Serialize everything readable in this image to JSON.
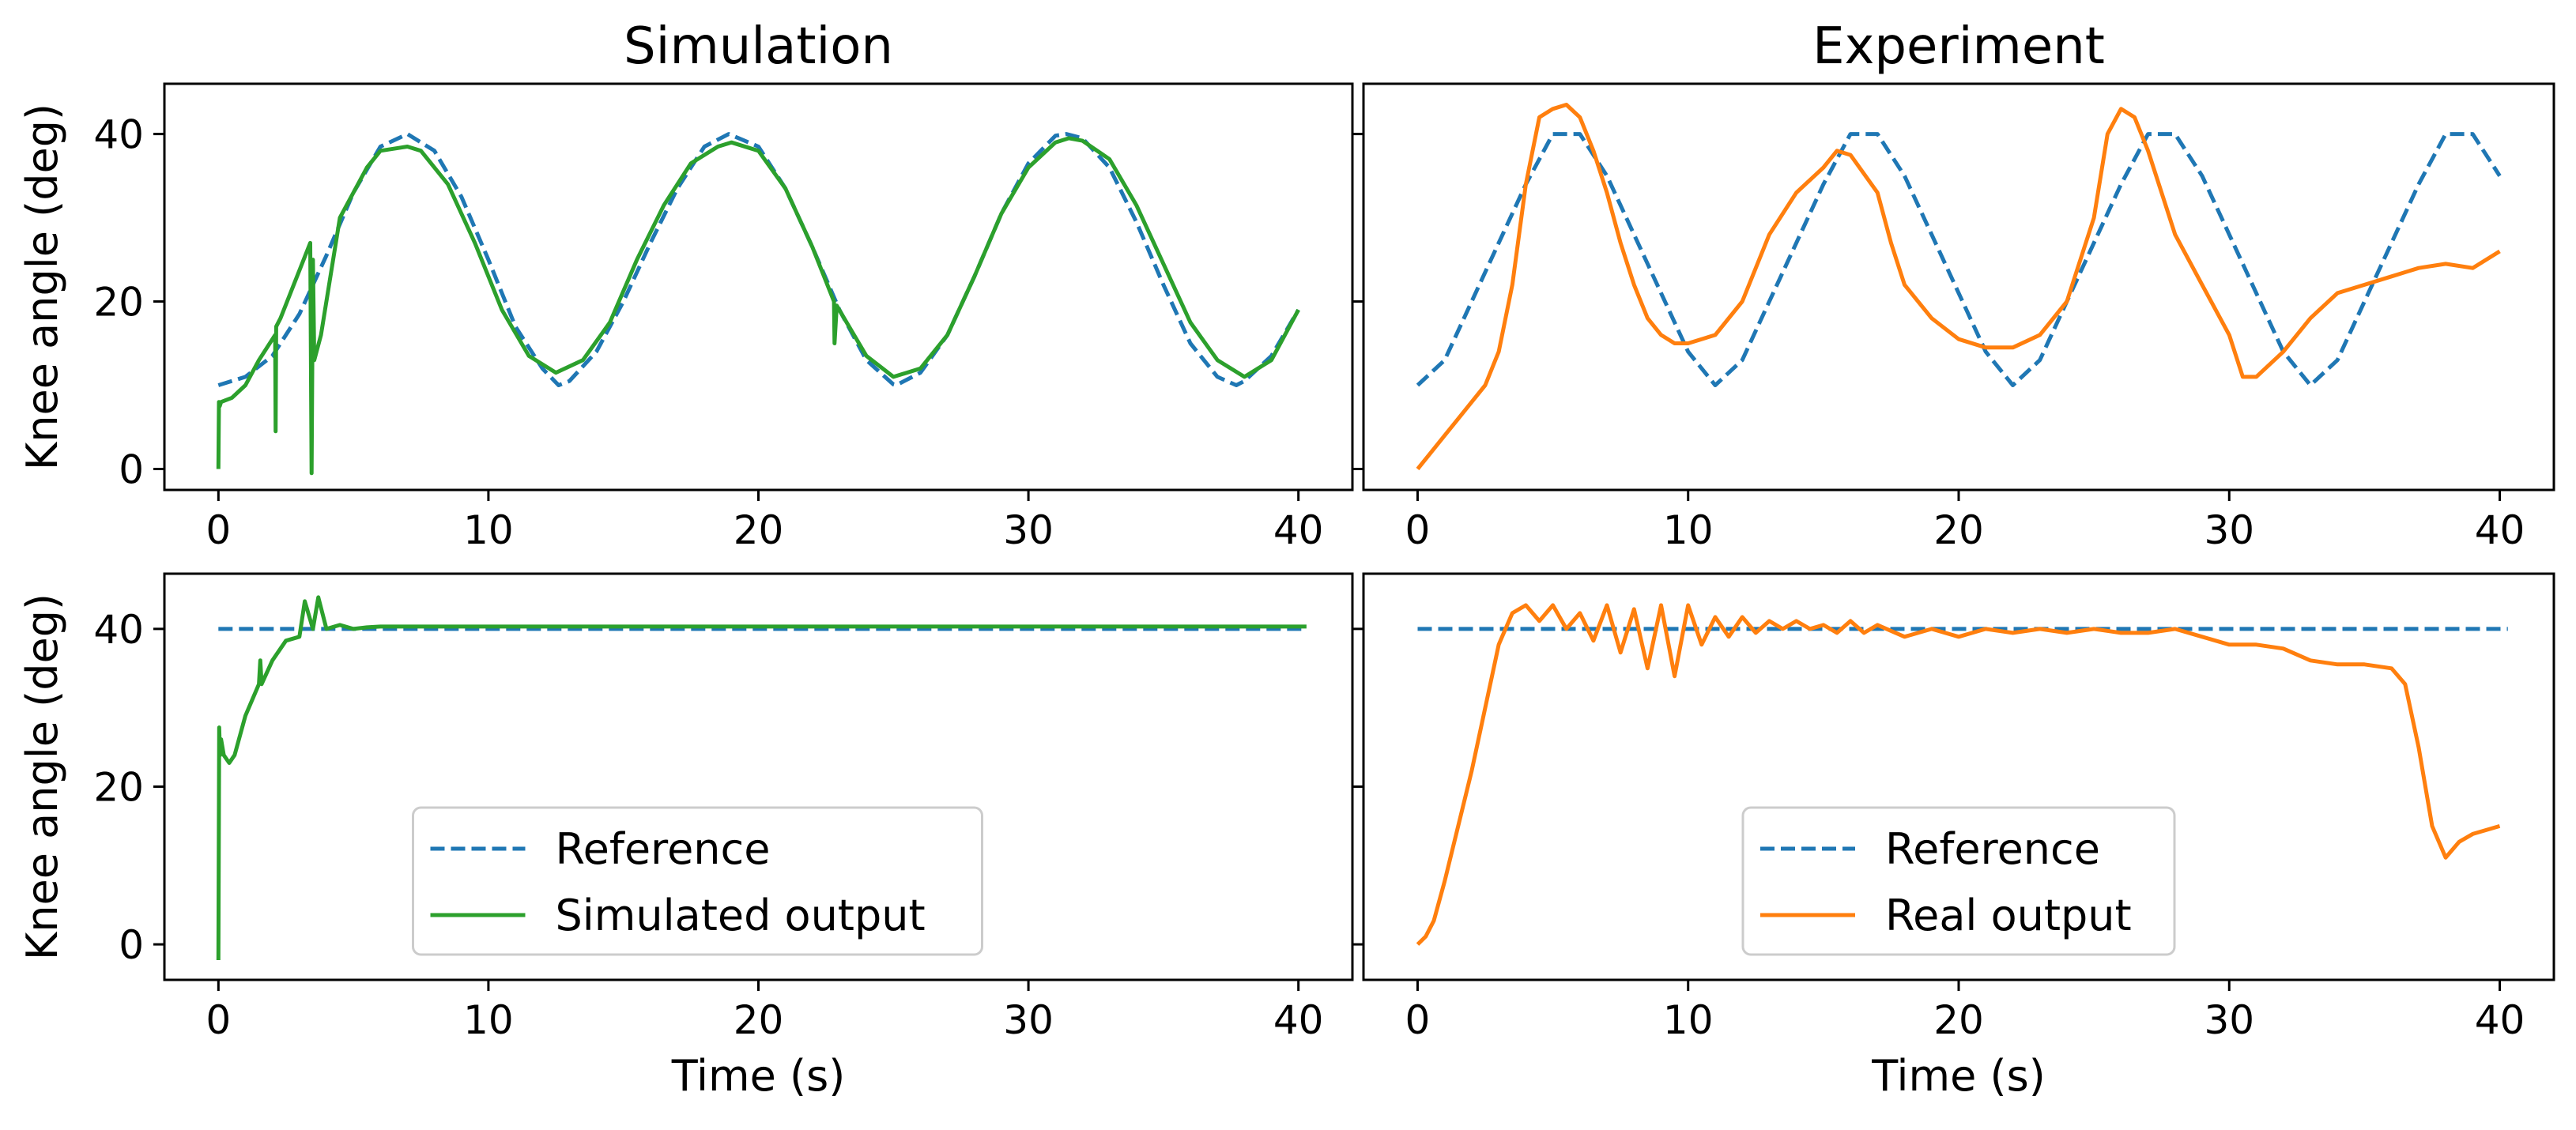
{
  "chart_data": [
    {
      "type": "line",
      "title": "Simulation",
      "xlabel": "",
      "ylabel": "Knee angle (deg)",
      "xlim": [
        -2,
        42
      ],
      "ylim": [
        -2.5,
        46
      ],
      "xticks": [
        0,
        10,
        20,
        30,
        40
      ],
      "yticks": [
        0,
        20,
        40
      ],
      "legend": null,
      "series": [
        {
          "name": "Reference",
          "style": "dashed",
          "color": "#1f77b4",
          "x": [
            0,
            1,
            2,
            3,
            4,
            5,
            6,
            7,
            8,
            9,
            10,
            11,
            12,
            12.6,
            13,
            14,
            15,
            16,
            17,
            18,
            18.9,
            20,
            21,
            22,
            23,
            24,
            25,
            25.1,
            26,
            27,
            28,
            29,
            30,
            31,
            31.4,
            32,
            33,
            34,
            35,
            36,
            37,
            37.7,
            38,
            39,
            40
          ],
          "y": [
            10,
            11,
            13.5,
            18.5,
            25.5,
            33,
            38.5,
            40,
            38,
            32.5,
            25,
            17,
            12,
            10,
            10.5,
            14,
            20,
            27,
            33.5,
            38.5,
            40,
            38.5,
            33.5,
            26.5,
            19,
            13,
            10.1,
            10,
            11.5,
            16,
            23,
            30.5,
            36.5,
            39.8,
            40,
            39.5,
            36,
            29.5,
            22,
            15,
            11,
            10,
            10.5,
            13.5,
            19
          ]
        },
        {
          "name": "Simulated output",
          "style": "solid",
          "color": "#2ca02c",
          "x": [
            0,
            0.02,
            0.05,
            0.1,
            0.5,
            1,
            1.5,
            2.1,
            2.12,
            2.14,
            2.3,
            3.4,
            3.45,
            3.5,
            3.55,
            3.8,
            4.5,
            5.5,
            6,
            7,
            7.5,
            8.5,
            9.5,
            10.5,
            11.5,
            12.5,
            13.5,
            14.5,
            15.5,
            16.5,
            17.5,
            18.5,
            19,
            20,
            21,
            22,
            22.8,
            22.82,
            22.9,
            24,
            25,
            26,
            27,
            28,
            29,
            30,
            31,
            31.5,
            32,
            33,
            34,
            35,
            36,
            37,
            38,
            39,
            40
          ],
          "y": [
            0,
            8,
            7.5,
            8,
            8.5,
            10,
            13,
            16,
            4.5,
            17,
            18,
            27,
            -0.5,
            25,
            13,
            16,
            30,
            36,
            38,
            38.5,
            38,
            34,
            27,
            19,
            13.5,
            11.5,
            13,
            17.5,
            25,
            31.5,
            36.5,
            38.5,
            39,
            38,
            33.5,
            26.5,
            20,
            15,
            19.5,
            13.5,
            11,
            12,
            16,
            23,
            30.5,
            36,
            39,
            39.5,
            39.2,
            37,
            31.5,
            24.5,
            17.5,
            13,
            11,
            13,
            19
          ]
        }
      ]
    },
    {
      "type": "line",
      "title": "Experiment",
      "xlabel": "",
      "ylabel": "",
      "xlim": [
        -2,
        42
      ],
      "ylim": [
        -2.5,
        46
      ],
      "xticks": [
        0,
        10,
        20,
        30,
        40
      ],
      "yticks": [
        0,
        20,
        40
      ],
      "legend": null,
      "series": [
        {
          "name": "Reference",
          "style": "dashed",
          "color": "#1f77b4",
          "x": [
            0,
            1,
            2,
            3,
            4,
            5,
            6,
            7,
            8,
            9,
            10,
            11,
            12,
            13,
            14,
            15,
            16,
            17,
            18,
            19,
            20,
            21,
            22,
            23,
            24,
            25,
            26,
            27,
            28,
            29,
            30,
            31,
            32,
            33,
            34,
            35,
            36,
            37,
            38,
            39,
            40
          ],
          "y": [
            10,
            13,
            20,
            27,
            34,
            40,
            40,
            35,
            28,
            21,
            14,
            10,
            13,
            20,
            27,
            34,
            40,
            40,
            35,
            28,
            21,
            14,
            10,
            13,
            20,
            27,
            34,
            40,
            40,
            35,
            28,
            21,
            14,
            10,
            13,
            20,
            27,
            34,
            40,
            40,
            35
          ]
        },
        {
          "name": "Real output",
          "style": "solid",
          "color": "#ff7f0e",
          "x": [
            0,
            0.5,
            1,
            1.5,
            2,
            2.5,
            3,
            3.5,
            4,
            4.5,
            5,
            5.5,
            6,
            6.5,
            7,
            7.5,
            8,
            8.5,
            9,
            9.5,
            10,
            11,
            12,
            13,
            14,
            15,
            15.5,
            16,
            17,
            17.5,
            18,
            19,
            20,
            21,
            22,
            23,
            24,
            25,
            25.5,
            26,
            26.5,
            27,
            28,
            29,
            30,
            30.5,
            31,
            32,
            33,
            34,
            35,
            36,
            37,
            38,
            39,
            40
          ],
          "y": [
            0,
            2,
            4,
            6,
            8,
            10,
            14,
            22,
            34,
            42,
            43,
            43.5,
            42,
            38,
            33,
            27,
            22,
            18,
            16,
            15,
            15,
            16,
            20,
            28,
            33,
            36,
            38,
            37.5,
            33,
            27,
            22,
            18,
            15.5,
            14.5,
            14.5,
            16,
            20,
            30,
            40,
            43,
            42,
            38,
            28,
            22,
            16,
            11,
            11,
            14,
            18,
            21,
            22,
            23,
            24,
            24.5,
            24,
            26
          ]
        }
      ]
    },
    {
      "type": "line",
      "title": "",
      "xlabel": "Time (s)",
      "ylabel": "Knee angle (deg)",
      "xlim": [
        -2,
        42
      ],
      "ylim": [
        -4.5,
        47
      ],
      "xticks": [
        0,
        10,
        20,
        30,
        40
      ],
      "yticks": [
        0,
        20,
        40
      ],
      "legend": "lower-center",
      "series": [
        {
          "name": "Reference",
          "style": "dashed",
          "color": "#1f77b4",
          "x": [
            0,
            40.3
          ],
          "y": [
            40,
            40
          ]
        },
        {
          "name": "Simulated output",
          "style": "solid",
          "color": "#2ca02c",
          "x": [
            0,
            0.03,
            0.06,
            0.1,
            0.2,
            0.4,
            0.6,
            1,
            1.5,
            1.55,
            1.6,
            2,
            2.5,
            3,
            3.2,
            3.5,
            3.7,
            4,
            4.5,
            5,
            5.5,
            6,
            8,
            10,
            20,
            30,
            40.3
          ],
          "y": [
            -2,
            27.5,
            24,
            26,
            24,
            23,
            24,
            29,
            33,
            36,
            33,
            36,
            38.5,
            39,
            43.5,
            40,
            44,
            40,
            40.5,
            40,
            40.2,
            40.3,
            40.3,
            40.3,
            40.3,
            40.3,
            40.3
          ]
        }
      ]
    },
    {
      "type": "line",
      "title": "",
      "xlabel": "Time (s)",
      "ylabel": "",
      "xlim": [
        -2,
        42
      ],
      "ylim": [
        -4.5,
        47
      ],
      "xticks": [
        0,
        10,
        20,
        30,
        40
      ],
      "yticks": [
        0,
        20,
        40
      ],
      "legend": "lower-center",
      "series": [
        {
          "name": "Reference",
          "style": "dashed",
          "color": "#1f77b4",
          "x": [
            0,
            40.3
          ],
          "y": [
            40,
            40
          ]
        },
        {
          "name": "Real output",
          "style": "solid",
          "color": "#ff7f0e",
          "x": [
            0,
            0.3,
            0.6,
            1,
            1.5,
            2,
            2.5,
            3,
            3.5,
            4,
            4.5,
            5,
            5.5,
            6,
            6.5,
            7,
            7.5,
            8,
            8.5,
            9,
            9.5,
            10,
            10.5,
            11,
            11.5,
            12,
            12.5,
            13,
            13.5,
            14,
            14.5,
            15,
            15.5,
            16,
            16.5,
            17,
            18,
            19,
            20,
            21,
            22,
            23,
            24,
            25,
            26,
            27,
            28,
            29,
            30,
            31,
            32,
            33,
            34,
            35,
            36,
            36.5,
            37,
            37.5,
            38,
            38.5,
            39,
            40
          ],
          "y": [
            0,
            1,
            3,
            8,
            15,
            22,
            30,
            38,
            42,
            43,
            41,
            43,
            40,
            42,
            38.5,
            43,
            37,
            42.5,
            35,
            43,
            34,
            43,
            38,
            41.5,
            39,
            41.5,
            39.5,
            41,
            40,
            41,
            40,
            40.5,
            39.5,
            41,
            39.5,
            40.5,
            39,
            40,
            39,
            40,
            39.5,
            40,
            39.5,
            40,
            39.5,
            39.5,
            40,
            39,
            38,
            38,
            37.5,
            36,
            35.5,
            35.5,
            35,
            33,
            25,
            15,
            11,
            13,
            14,
            15
          ]
        }
      ]
    }
  ]
}
